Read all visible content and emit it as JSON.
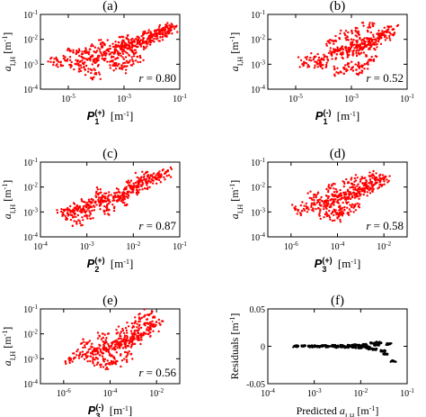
{
  "chart_data": [
    {
      "panel": "(a)",
      "type": "scatter",
      "color": "#ff0000",
      "xscale": "log",
      "yscale": "log",
      "xlim": [
        1e-06,
        0.1
      ],
      "ylim": [
        0.0001,
        0.1
      ],
      "xticks": [
        1e-05,
        0.001,
        0.1
      ],
      "xtick_labels": [
        "10^-5",
        "10^-3",
        "10^-1"
      ],
      "yticks": [
        0.0001,
        0.001,
        0.01,
        0.1
      ],
      "ytick_labels": [
        "10^-4",
        "10^-3",
        "10^-2",
        "10^-1"
      ],
      "ylabel": "a_I,H [m^-1]",
      "xlabel": "P_1^(+) [m^-1]",
      "annotation": "r = 0.80",
      "points": [
        [
          3e-06,
          0.0012
        ],
        [
          8e-06,
          0.0014
        ],
        [
          2e-05,
          0.001
        ],
        [
          3e-05,
          0.002
        ],
        [
          5e-05,
          0.0016
        ],
        [
          8e-05,
          0.0013
        ],
        [
          0.00012,
          0.0022
        ],
        [
          0.0002,
          0.003
        ],
        [
          0.0003,
          0.0025
        ],
        [
          0.0005,
          0.004
        ],
        [
          0.0006,
          0.0018
        ],
        [
          0.0008,
          0.005
        ],
        [
          0.001,
          0.0035
        ],
        [
          0.0012,
          0.006
        ],
        [
          0.0015,
          0.0045
        ],
        [
          0.002,
          0.008
        ],
        [
          0.0025,
          0.0055
        ],
        [
          0.003,
          0.009
        ],
        [
          0.004,
          0.0065
        ],
        [
          0.005,
          0.011
        ],
        [
          0.006,
          0.008
        ],
        [
          0.008,
          0.013
        ],
        [
          0.01,
          0.012
        ],
        [
          0.012,
          0.016
        ],
        [
          0.015,
          0.014
        ],
        [
          0.02,
          0.02
        ],
        [
          0.025,
          0.018
        ],
        [
          0.03,
          0.025
        ],
        [
          0.04,
          0.023
        ],
        [
          0.05,
          0.03
        ],
        [
          4e-05,
          0.0006
        ],
        [
          0.0001,
          0.0004
        ],
        [
          0.0004,
          0.0009
        ],
        [
          0.0007,
          0.0007
        ],
        [
          0.0015,
          0.0012
        ],
        [
          0.003,
          0.002
        ],
        [
          1.5e-05,
          0.003
        ],
        [
          6e-05,
          0.004
        ],
        [
          0.0002,
          0.006
        ],
        [
          0.0009,
          0.009
        ]
      ]
    },
    {
      "panel": "(b)",
      "type": "scatter",
      "color": "#ff0000",
      "xscale": "log",
      "yscale": "log",
      "xlim": [
        1e-06,
        0.1
      ],
      "ylim": [
        0.0001,
        0.1
      ],
      "xticks": [
        1e-05,
        0.001,
        0.1
      ],
      "xtick_labels": [
        "10^-5",
        "10^-3",
        "10^-1"
      ],
      "yticks": [
        0.0001,
        0.001,
        0.01,
        0.1
      ],
      "ytick_labels": [
        "10^-4",
        "10^-3",
        "10^-2",
        "10^-1"
      ],
      "ylabel": "a_I,H [m^-1]",
      "xlabel": "P_1^(-) [m^-1]",
      "annotation": "r = 0.52",
      "points": [
        [
          2e-05,
          0.0012
        ],
        [
          5e-05,
          0.002
        ],
        [
          0.0001,
          0.0015
        ],
        [
          0.0002,
          0.003
        ],
        [
          0.0003,
          0.0025
        ],
        [
          0.0005,
          0.004
        ],
        [
          0.0007,
          0.003
        ],
        [
          0.001,
          0.005
        ],
        [
          0.0012,
          0.0035
        ],
        [
          0.0015,
          0.006
        ],
        [
          0.002,
          0.004
        ],
        [
          0.0025,
          0.007
        ],
        [
          0.003,
          0.005
        ],
        [
          0.004,
          0.008
        ],
        [
          0.005,
          0.006
        ],
        [
          0.007,
          0.01
        ],
        [
          0.01,
          0.012
        ],
        [
          0.015,
          0.015
        ],
        [
          0.02,
          0.02
        ],
        [
          0.03,
          0.025
        ],
        [
          0.0008,
          0.0008
        ],
        [
          0.0015,
          0.0006
        ],
        [
          0.003,
          0.001
        ],
        [
          0.005,
          0.0015
        ],
        [
          0.0004,
          0.0005
        ],
        [
          8e-05,
          0.0008
        ],
        [
          0.0002,
          0.009
        ],
        [
          0.0006,
          0.015
        ],
        [
          0.0015,
          0.02
        ],
        [
          0.004,
          0.03
        ]
      ]
    },
    {
      "panel": "(c)",
      "type": "scatter",
      "color": "#ff0000",
      "xscale": "log",
      "yscale": "log",
      "xlim": [
        0.0001,
        0.1
      ],
      "ylim": [
        0.0001,
        0.1
      ],
      "xticks": [
        0.0001,
        0.001,
        0.01,
        0.1
      ],
      "xtick_labels": [
        "10^-4",
        "10^-3",
        "10^-2",
        "10^-1"
      ],
      "yticks": [
        0.0001,
        0.001,
        0.01,
        0.1
      ],
      "ytick_labels": [
        "10^-4",
        "10^-3",
        "10^-2",
        "10^-1"
      ],
      "ylabel": "a_I,H [m^-1]",
      "xlabel": "P_2^(+) [m^-1]",
      "annotation": "r = 0.87",
      "points": [
        [
          0.0003,
          0.0008
        ],
        [
          0.0004,
          0.0012
        ],
        [
          0.0005,
          0.001
        ],
        [
          0.0007,
          0.0015
        ],
        [
          0.0008,
          0.0012
        ],
        [
          0.001,
          0.002
        ],
        [
          0.0012,
          0.0017
        ],
        [
          0.0015,
          0.0025
        ],
        [
          0.002,
          0.002
        ],
        [
          0.0025,
          0.0035
        ],
        [
          0.003,
          0.003
        ],
        [
          0.004,
          0.0045
        ],
        [
          0.005,
          0.004
        ],
        [
          0.006,
          0.006
        ],
        [
          0.008,
          0.0065
        ],
        [
          0.01,
          0.008
        ],
        [
          0.012,
          0.011
        ],
        [
          0.015,
          0.012
        ],
        [
          0.02,
          0.015
        ],
        [
          0.025,
          0.02
        ],
        [
          0.03,
          0.022
        ],
        [
          0.04,
          0.03
        ],
        [
          0.05,
          0.04
        ],
        [
          0.002,
          0.006
        ],
        [
          0.003,
          0.0012
        ],
        [
          0.0006,
          0.0004
        ],
        [
          0.001,
          0.0007
        ],
        [
          0.006,
          0.003
        ],
        [
          0.008,
          0.012
        ],
        [
          0.015,
          0.025
        ]
      ]
    },
    {
      "panel": "(d)",
      "type": "scatter",
      "color": "#ff0000",
      "xscale": "log",
      "yscale": "log",
      "xlim": [
        1e-07,
        0.1
      ],
      "ylim": [
        0.0001,
        0.1
      ],
      "xticks": [
        1e-06,
        0.0001,
        0.01
      ],
      "xtick_labels": [
        "10^-6",
        "10^-4",
        "10^-2"
      ],
      "yticks": [
        0.0001,
        0.001,
        0.01,
        0.1
      ],
      "ytick_labels": [
        "10^-4",
        "10^-3",
        "10^-2",
        "10^-1"
      ],
      "ylabel": "a_I,H [m^-1]",
      "xlabel": "P_3^(+) [m^-1]",
      "annotation": "r = 0.58",
      "points": [
        [
          2e-06,
          0.0012
        ],
        [
          5e-06,
          0.0015
        ],
        [
          1e-05,
          0.002
        ],
        [
          2e-05,
          0.0018
        ],
        [
          3e-05,
          0.0025
        ],
        [
          5e-05,
          0.003
        ],
        [
          7e-05,
          0.0025
        ],
        [
          0.0001,
          0.004
        ],
        [
          0.00015,
          0.0035
        ],
        [
          0.0002,
          0.005
        ],
        [
          0.0003,
          0.004
        ],
        [
          0.0005,
          0.006
        ],
        [
          0.0007,
          0.0055
        ],
        [
          0.001,
          0.008
        ],
        [
          0.0015,
          0.007
        ],
        [
          0.002,
          0.01
        ],
        [
          0.003,
          0.012
        ],
        [
          0.005,
          0.015
        ],
        [
          0.007,
          0.018
        ],
        [
          0.01,
          0.02
        ],
        [
          3e-05,
          0.0008
        ],
        [
          0.0001,
          0.0009
        ],
        [
          0.0002,
          0.0012
        ],
        [
          0.0005,
          0.0015
        ],
        [
          1e-05,
          0.005
        ],
        [
          5e-05,
          0.009
        ],
        [
          0.0003,
          0.015
        ],
        [
          0.001,
          0.02
        ],
        [
          0.0001,
          0.0006
        ],
        [
          0.003,
          0.03
        ]
      ]
    },
    {
      "panel": "(e)",
      "type": "scatter",
      "color": "#ff0000",
      "xscale": "log",
      "yscale": "log",
      "xlim": [
        1e-07,
        0.1
      ],
      "ylim": [
        0.0001,
        0.1
      ],
      "xticks": [
        1e-06,
        0.0001,
        0.01
      ],
      "xtick_labels": [
        "10^-6",
        "10^-4",
        "10^-2"
      ],
      "yticks": [
        0.0001,
        0.001,
        0.01,
        0.1
      ],
      "ytick_labels": [
        "10^-4",
        "10^-3",
        "10^-2",
        "10^-1"
      ],
      "ylabel": "a_I,H [m^-1]",
      "xlabel": "P_3^(-) [m^-1]",
      "annotation": "r = 0.56",
      "points": [
        [
          2e-06,
          0.001
        ],
        [
          5e-06,
          0.0015
        ],
        [
          1e-05,
          0.0012
        ],
        [
          2e-05,
          0.002
        ],
        [
          3e-05,
          0.0018
        ],
        [
          5e-05,
          0.0025
        ],
        [
          7e-05,
          0.002
        ],
        [
          0.0001,
          0.003
        ],
        [
          0.00015,
          0.0028
        ],
        [
          0.0002,
          0.004
        ],
        [
          0.0003,
          0.0035
        ],
        [
          0.0005,
          0.005
        ],
        [
          0.0007,
          0.0045
        ],
        [
          0.001,
          0.007
        ],
        [
          0.0015,
          0.006
        ],
        [
          0.002,
          0.009
        ],
        [
          0.003,
          0.011
        ],
        [
          0.005,
          0.015
        ],
        [
          0.007,
          0.02
        ],
        [
          0.01,
          0.03
        ],
        [
          3e-05,
          0.0007
        ],
        [
          0.0001,
          0.0006
        ],
        [
          0.0002,
          0.0008
        ],
        [
          0.0005,
          0.0012
        ],
        [
          1e-05,
          0.004
        ],
        [
          5e-05,
          0.007
        ],
        [
          0.0003,
          0.012
        ],
        [
          0.001,
          0.02
        ],
        [
          0.002,
          0.04
        ],
        [
          0.005,
          0.06
        ]
      ]
    },
    {
      "panel": "(f)",
      "type": "scatter",
      "color": "#000000",
      "xscale": "log",
      "yscale": "linear",
      "xlim": [
        0.0001,
        0.1
      ],
      "ylim": [
        -0.05,
        0.05
      ],
      "xticks": [
        0.0001,
        0.001,
        0.01,
        0.1
      ],
      "xtick_labels": [
        "10^-4",
        "10^-3",
        "10^-2",
        "10^-1"
      ],
      "yticks": [
        -0.05,
        0,
        0.05
      ],
      "ytick_labels": [
        "-0.05",
        "0",
        "0.05"
      ],
      "ylabel": "Residuals [m^-1]",
      "xlabel": "Predicted a_I,H [m^-1]",
      "points": [
        [
          0.0004,
          0.0
        ],
        [
          0.0006,
          0.0004
        ],
        [
          0.0008,
          -0.0003
        ],
        [
          0.001,
          0.0002
        ],
        [
          0.0013,
          -0.0004
        ],
        [
          0.0016,
          0.0005
        ],
        [
          0.002,
          -0.0006
        ],
        [
          0.0025,
          0.0006
        ],
        [
          0.003,
          -0.0008
        ],
        [
          0.004,
          0.0009
        ],
        [
          0.005,
          -0.001
        ],
        [
          0.006,
          0.0012
        ],
        [
          0.007,
          -0.0014
        ],
        [
          0.008,
          0.0015
        ],
        [
          0.01,
          -0.0018
        ],
        [
          0.012,
          0.002
        ],
        [
          0.015,
          -0.003
        ],
        [
          0.018,
          0.004
        ],
        [
          0.02,
          -0.004
        ],
        [
          0.025,
          0.005
        ],
        [
          0.03,
          -0.006
        ],
        [
          0.035,
          -0.01
        ],
        [
          0.04,
          0.003
        ],
        [
          0.05,
          -0.02
        ],
        [
          0.003,
          0.0003
        ],
        [
          0.004,
          -0.0002
        ],
        [
          0.006,
          0.0
        ],
        [
          0.009,
          0.001
        ],
        [
          0.014,
          -0.001
        ],
        [
          0.022,
          0.002
        ]
      ]
    }
  ]
}
